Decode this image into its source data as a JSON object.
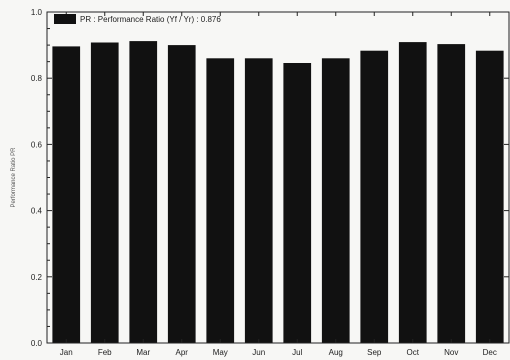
{
  "chart_data": {
    "type": "bar",
    "title": "",
    "xlabel": "",
    "ylabel": "Performance Ratio PR",
    "categories": [
      "Jan",
      "Feb",
      "Mar",
      "Apr",
      "May",
      "Jun",
      "Jul",
      "Aug",
      "Sep",
      "Oct",
      "Nov",
      "Dec"
    ],
    "series": [
      {
        "name": "PR : Performance Ratio (Yf / Yr) : 0.876",
        "values": [
          0.896,
          0.908,
          0.912,
          0.9,
          0.86,
          0.86,
          0.846,
          0.86,
          0.883,
          0.909,
          0.903,
          0.883
        ]
      }
    ],
    "ylim": [
      0,
      1.0
    ],
    "yticks": [
      "0.0",
      "0.2",
      "0.4",
      "0.6",
      "0.8",
      "1.0"
    ],
    "grid": false,
    "legend": "top-left",
    "colors": {
      "bar": "#111111",
      "background": "#f7f7f5",
      "axis": "#222222"
    }
  }
}
